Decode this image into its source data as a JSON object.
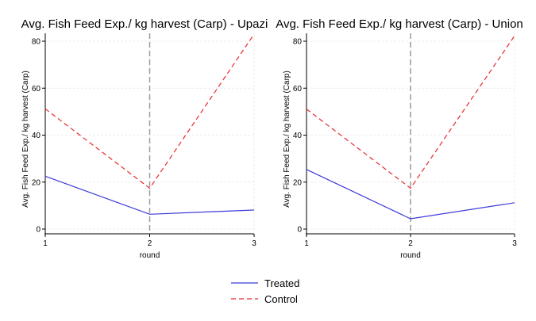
{
  "chart_data": [
    {
      "type": "line",
      "title": "Avg. Fish Feed Exp./ kg harvest (Carp) - Upazi",
      "xlabel": "round",
      "ylabel": "Avg. Fish Feed Exp./ kg harvest (Carp)",
      "x": [
        1,
        2,
        3
      ],
      "xlim": [
        1,
        3
      ],
      "ylim": [
        0,
        80
      ],
      "xticks": [
        "1",
        "2",
        "3"
      ],
      "yticks": [
        "0",
        "20",
        "40",
        "60",
        "80"
      ],
      "grid": true,
      "reference_line_x": 2,
      "series": [
        {
          "name": "Treated",
          "values": [
            22.5,
            6.3,
            8.1
          ],
          "color": "#3b3bd8",
          "style": "solid"
        },
        {
          "name": "Control",
          "values": [
            51.2,
            17.4,
            83.0
          ],
          "color": "#e8282b",
          "style": "dashed"
        }
      ]
    },
    {
      "type": "line",
      "title": "Avg. Fish Feed Exp./ kg harvest (Carp) - Union",
      "xlabel": "round",
      "ylabel": "Avg. Fish Feed Exp./ kg harvest (Carp)",
      "x": [
        1,
        2,
        3
      ],
      "xlim": [
        1,
        3
      ],
      "ylim": [
        0,
        80
      ],
      "xticks": [
        "1",
        "2",
        "3"
      ],
      "yticks": [
        "0",
        "20",
        "40",
        "60",
        "80"
      ],
      "grid": true,
      "reference_line_x": 2,
      "series": [
        {
          "name": "Treated",
          "values": [
            25.4,
            4.4,
            11.2
          ],
          "color": "#3b3bd8",
          "style": "solid"
        },
        {
          "name": "Control",
          "values": [
            51.1,
            17.4,
            82.3
          ],
          "color": "#e8282b",
          "style": "dashed"
        }
      ]
    }
  ],
  "legend": {
    "placement": "bottom-center",
    "items": [
      {
        "label": "Treated",
        "color": "#3b3bd8",
        "style": "solid"
      },
      {
        "label": "Control",
        "color": "#e8282b",
        "style": "dashed"
      }
    ]
  },
  "colors": {
    "grid": "#ececec",
    "axis": "#000000",
    "reference_line": "#9a9a9a"
  }
}
